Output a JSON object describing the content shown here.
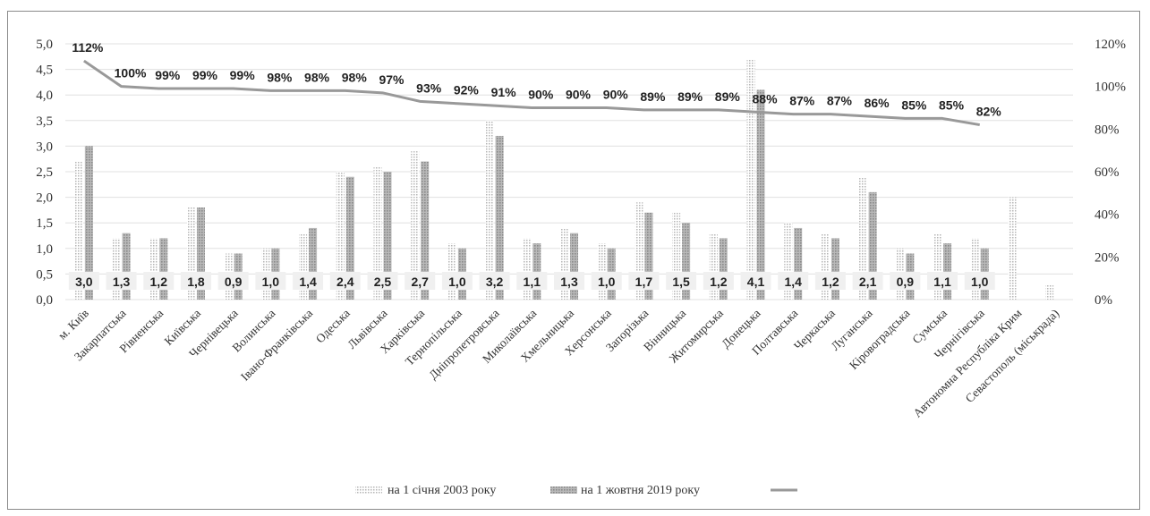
{
  "chart_data": {
    "type": "bar",
    "categories": [
      "м. Київ",
      "Закарпатська",
      "Рівненська",
      "Київська",
      "Чернівецька",
      "Волинська",
      "Івано-Франківська",
      "Одеська",
      "Львівська",
      "Харківська",
      "Тернопільська",
      "Дніпропетровська",
      "Миколаївська",
      "Хмельницька",
      "Херсонська",
      "Запорізька",
      "Вінницька",
      "Житомирська",
      "Донецька",
      "Полтавська",
      "Черкаська",
      "Луганська",
      "Кіровоградська",
      "Сумська",
      "Чернігівська",
      "Автономна Республіка Крим",
      "Севастополь (міськрада)"
    ],
    "series": [
      {
        "name": "на 1 січня 2003 року",
        "type": "bar",
        "pattern": "dotted",
        "values": [
          2.7,
          1.2,
          1.2,
          1.8,
          0.9,
          1.0,
          1.3,
          2.5,
          2.6,
          2.9,
          1.1,
          3.5,
          1.2,
          1.4,
          1.1,
          1.9,
          1.7,
          1.3,
          4.7,
          1.5,
          1.3,
          2.4,
          1.0,
          1.3,
          1.2,
          2.0,
          0.3
        ]
      },
      {
        "name": "на 1 жовтня 2019 року",
        "type": "bar",
        "pattern": "hatched",
        "values": [
          3.0,
          1.3,
          1.2,
          1.8,
          0.9,
          1.0,
          1.4,
          2.4,
          2.5,
          2.7,
          1.0,
          3.2,
          1.1,
          1.3,
          1.0,
          1.7,
          1.5,
          1.2,
          4.1,
          1.4,
          1.2,
          2.1,
          0.9,
          1.1,
          1.0,
          null,
          null
        ],
        "data_labels": [
          "3,0",
          "1,3",
          "1,2",
          "1,8",
          "0,9",
          "1,0",
          "1,4",
          "2,4",
          "2,5",
          "2,7",
          "1,0",
          "3,2",
          "1,1",
          "1,3",
          "1,0",
          "1,7",
          "1,5",
          "1,2",
          "4,1",
          "1,4",
          "1,2",
          "2,1",
          "0,9",
          "1,1",
          "1,0"
        ]
      },
      {
        "name": "",
        "type": "line",
        "axis": "right",
        "values": [
          112,
          100,
          99,
          99,
          99,
          98,
          98,
          98,
          97,
          93,
          92,
          91,
          90,
          90,
          90,
          89,
          89,
          89,
          88,
          87,
          87,
          86,
          85,
          85,
          82,
          null,
          null
        ],
        "data_labels": [
          "112%",
          "100%",
          "99%",
          "99%",
          "99%",
          "98%",
          "98%",
          "98%",
          "97%",
          "93%",
          "92%",
          "91%",
          "90%",
          "90%",
          "90%",
          "89%",
          "89%",
          "89%",
          "88%",
          "87%",
          "87%",
          "86%",
          "85%",
          "85%",
          "82%"
        ]
      }
    ],
    "y_left": {
      "min": 0,
      "max": 5,
      "step": 0.5,
      "ticks": [
        "0,0",
        "0,5",
        "1,0",
        "1,5",
        "2,0",
        "2,5",
        "3,0",
        "3,5",
        "4,0",
        "4,5",
        "5,0"
      ]
    },
    "y_right": {
      "min": 0,
      "max": 120,
      "step": 20,
      "ticks": [
        "0%",
        "20%",
        "40%",
        "60%",
        "80%",
        "100%",
        "120%"
      ]
    },
    "grid": true,
    "legend_position": "bottom",
    "legend": [
      {
        "label": "на 1 січня 2003 року",
        "style": "dotted"
      },
      {
        "label": "на 1 жовтня 2019 року",
        "style": "hatched"
      },
      {
        "label": "",
        "style": "line"
      }
    ],
    "colors": {
      "dotted": "#c8c8c8",
      "hatched": "#9a9a9a",
      "line": "#999999",
      "grid": "#e0e0e0",
      "label_box": "#f0f0f0"
    }
  }
}
